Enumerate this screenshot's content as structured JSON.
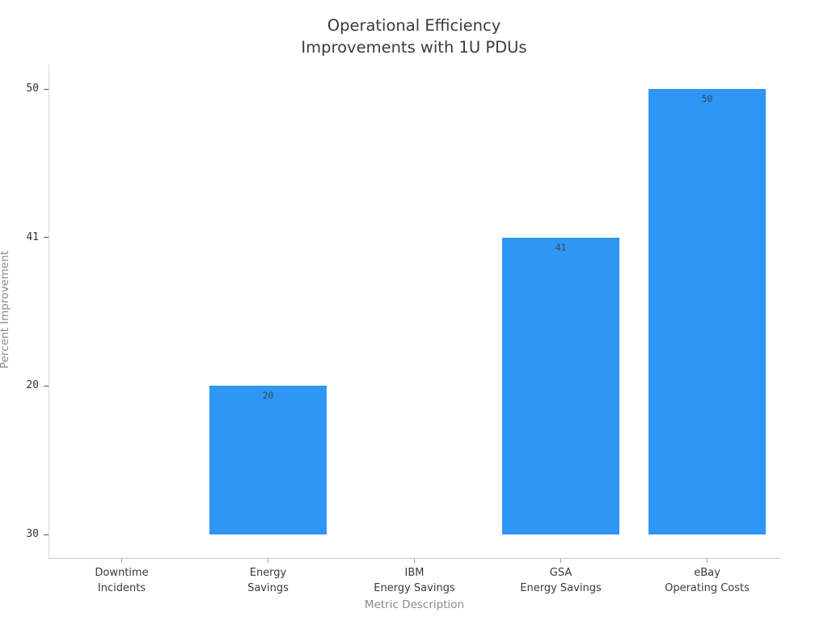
{
  "page": {
    "background": "#ffffff"
  },
  "chart_data": {
    "type": "bar",
    "title": "Operational Efficiency\nImprovements with 1U PDUs",
    "xlabel": "Metric Description",
    "ylabel": "Percent Improvement",
    "categories": [
      "Downtime\nIncidents",
      "Energy\nSavings",
      "IBM\nEnergy Savings",
      "GSA\nEnergy Savings",
      "eBay\nOperating Costs"
    ],
    "values": [
      "30",
      "20",
      "30",
      "41",
      "50"
    ],
    "visible_bar_labels": [
      "20",
      "41",
      "50"
    ],
    "y_axis_type": "category",
    "y_tick_order_bottom_to_top": [
      "30",
      "20",
      "41",
      "50"
    ],
    "grid": "off",
    "legend": "none",
    "colors": {
      "bar_fill": "#2E96F5",
      "title_text": "#3b3b3b",
      "tick_text": "#333333",
      "category_text": "#3a3a3a",
      "axis_title_text": "#8a8a8a",
      "axis_line": "#d9d9d9",
      "bar_label_text": "#3f4652"
    }
  }
}
